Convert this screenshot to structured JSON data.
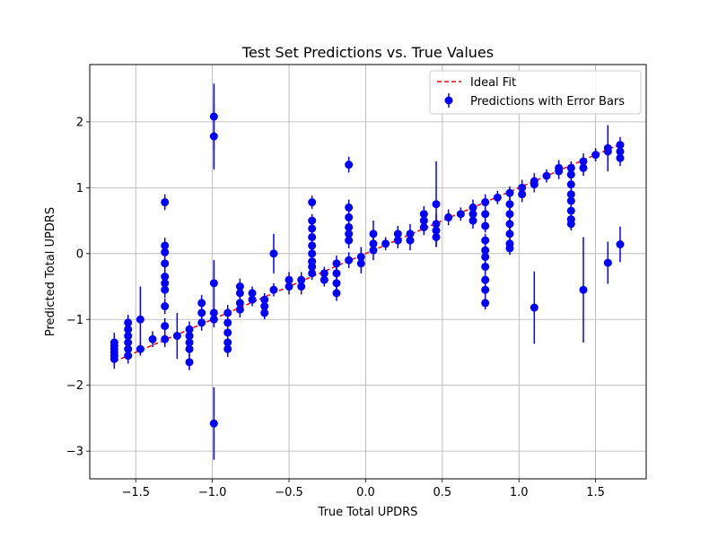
{
  "chart_data": {
    "type": "scatter",
    "title": "Test Set Predictions vs. True Values",
    "xlabel": "True Total UPDRS",
    "ylabel": "Predicted Total UPDRS",
    "xlim": [
      -1.8,
      1.83
    ],
    "ylim": [
      -3.42,
      2.87
    ],
    "x_ticks": [
      -1.5,
      -1.0,
      -0.5,
      0.0,
      0.5,
      1.0,
      1.5
    ],
    "x_tick_labels": [
      "−1.5",
      "−1.0",
      "−0.5",
      "0.0",
      "0.5",
      "1.0",
      "1.5"
    ],
    "y_ticks": [
      -3,
      -2,
      -1,
      0,
      1,
      2
    ],
    "y_tick_labels": [
      "−3",
      "−2",
      "−1",
      "0",
      "1",
      "2"
    ],
    "grid": true,
    "legend_position": "top-right",
    "legend": [
      {
        "label": "Ideal Fit",
        "style": "dashed-line",
        "color": "#ff0000"
      },
      {
        "label": "Predictions with Error Bars",
        "style": "marker-errorbar",
        "color": "#0000ff"
      }
    ],
    "ideal_fit": {
      "x": [
        -1.64,
        1.65
      ],
      "y": [
        -1.64,
        1.65
      ],
      "color": "#ff0000"
    },
    "marker_color": "#0000ff",
    "points": [
      {
        "x": -1.64,
        "y": -1.55,
        "err": 0.15
      },
      {
        "x": -1.64,
        "y": -1.5,
        "err": 0.15
      },
      {
        "x": -1.64,
        "y": -1.45,
        "err": 0.15
      },
      {
        "x": -1.64,
        "y": -1.4,
        "err": 0.15
      },
      {
        "x": -1.64,
        "y": -1.35,
        "err": 0.15
      },
      {
        "x": -1.64,
        "y": -1.6,
        "err": 0.15
      },
      {
        "x": -1.55,
        "y": -1.55,
        "err": 0.12
      },
      {
        "x": -1.55,
        "y": -1.45,
        "err": 0.12
      },
      {
        "x": -1.55,
        "y": -1.35,
        "err": 0.12
      },
      {
        "x": -1.55,
        "y": -1.25,
        "err": 0.12
      },
      {
        "x": -1.55,
        "y": -1.15,
        "err": 0.12
      },
      {
        "x": -1.55,
        "y": -1.05,
        "err": 0.12
      },
      {
        "x": -1.47,
        "y": -1.0,
        "err": 0.5
      },
      {
        "x": -1.47,
        "y": -1.45,
        "err": 0.1
      },
      {
        "x": -1.39,
        "y": -1.3,
        "err": 0.12
      },
      {
        "x": -1.31,
        "y": 0.78,
        "err": 0.12
      },
      {
        "x": -1.31,
        "y": 0.12,
        "err": 0.12
      },
      {
        "x": -1.31,
        "y": 0.02,
        "err": 0.12
      },
      {
        "x": -1.31,
        "y": -0.15,
        "err": 0.12
      },
      {
        "x": -1.31,
        "y": -0.35,
        "err": 0.12
      },
      {
        "x": -1.31,
        "y": -0.45,
        "err": 0.12
      },
      {
        "x": -1.31,
        "y": -0.55,
        "err": 0.12
      },
      {
        "x": -1.31,
        "y": -0.8,
        "err": 0.12
      },
      {
        "x": -1.31,
        "y": -1.1,
        "err": 0.12
      },
      {
        "x": -1.31,
        "y": -1.3,
        "err": 0.12
      },
      {
        "x": -1.23,
        "y": -1.25,
        "err": 0.35
      },
      {
        "x": -1.15,
        "y": -1.15,
        "err": 0.12
      },
      {
        "x": -1.15,
        "y": -1.25,
        "err": 0.12
      },
      {
        "x": -1.15,
        "y": -1.35,
        "err": 0.12
      },
      {
        "x": -1.15,
        "y": -1.45,
        "err": 0.12
      },
      {
        "x": -1.15,
        "y": -1.65,
        "err": 0.12
      },
      {
        "x": -1.07,
        "y": -0.75,
        "err": 0.12
      },
      {
        "x": -1.07,
        "y": -0.9,
        "err": 0.12
      },
      {
        "x": -1.07,
        "y": -1.05,
        "err": 0.12
      },
      {
        "x": -0.99,
        "y": 2.08,
        "err": 0.5
      },
      {
        "x": -0.99,
        "y": 1.78,
        "err": 0.5
      },
      {
        "x": -0.99,
        "y": -0.45,
        "err": 0.35
      },
      {
        "x": -0.99,
        "y": -0.9,
        "err": 0.12
      },
      {
        "x": -0.99,
        "y": -1.0,
        "err": 0.12
      },
      {
        "x": -0.99,
        "y": -2.58,
        "err": 0.55
      },
      {
        "x": -0.9,
        "y": -0.9,
        "err": 0.12
      },
      {
        "x": -0.9,
        "y": -1.05,
        "err": 0.12
      },
      {
        "x": -0.9,
        "y": -1.2,
        "err": 0.12
      },
      {
        "x": -0.9,
        "y": -1.35,
        "err": 0.12
      },
      {
        "x": -0.9,
        "y": -1.45,
        "err": 0.12
      },
      {
        "x": -0.82,
        "y": -0.5,
        "err": 0.12
      },
      {
        "x": -0.82,
        "y": -0.6,
        "err": 0.12
      },
      {
        "x": -0.82,
        "y": -0.75,
        "err": 0.12
      },
      {
        "x": -0.82,
        "y": -0.85,
        "err": 0.12
      },
      {
        "x": -0.74,
        "y": -0.6,
        "err": 0.1
      },
      {
        "x": -0.74,
        "y": -0.7,
        "err": 0.1
      },
      {
        "x": -0.66,
        "y": -0.7,
        "err": 0.1
      },
      {
        "x": -0.66,
        "y": -0.8,
        "err": 0.1
      },
      {
        "x": -0.66,
        "y": -0.9,
        "err": 0.1
      },
      {
        "x": -0.6,
        "y": 0.0,
        "err": 0.3
      },
      {
        "x": -0.6,
        "y": -0.55,
        "err": 0.1
      },
      {
        "x": -0.5,
        "y": -0.4,
        "err": 0.12
      },
      {
        "x": -0.5,
        "y": -0.5,
        "err": 0.12
      },
      {
        "x": -0.42,
        "y": -0.4,
        "err": 0.12
      },
      {
        "x": -0.42,
        "y": -0.5,
        "err": 0.12
      },
      {
        "x": -0.35,
        "y": 0.78,
        "err": 0.1
      },
      {
        "x": -0.35,
        "y": 0.5,
        "err": 0.1
      },
      {
        "x": -0.35,
        "y": 0.38,
        "err": 0.1
      },
      {
        "x": -0.35,
        "y": 0.25,
        "err": 0.1
      },
      {
        "x": -0.35,
        "y": 0.12,
        "err": 0.1
      },
      {
        "x": -0.35,
        "y": 0.0,
        "err": 0.1
      },
      {
        "x": -0.35,
        "y": -0.12,
        "err": 0.1
      },
      {
        "x": -0.35,
        "y": -0.2,
        "err": 0.1
      },
      {
        "x": -0.35,
        "y": -0.3,
        "err": 0.1
      },
      {
        "x": -0.27,
        "y": -0.3,
        "err": 0.1
      },
      {
        "x": -0.27,
        "y": -0.4,
        "err": 0.1
      },
      {
        "x": -0.19,
        "y": -0.15,
        "err": 0.12
      },
      {
        "x": -0.19,
        "y": -0.3,
        "err": 0.12
      },
      {
        "x": -0.19,
        "y": -0.45,
        "err": 0.12
      },
      {
        "x": -0.19,
        "y": -0.6,
        "err": 0.12
      },
      {
        "x": -0.11,
        "y": 1.35,
        "err": 0.12
      },
      {
        "x": -0.11,
        "y": 0.7,
        "err": 0.12
      },
      {
        "x": -0.11,
        "y": 0.55,
        "err": 0.12
      },
      {
        "x": -0.11,
        "y": 0.4,
        "err": 0.12
      },
      {
        "x": -0.11,
        "y": 0.3,
        "err": 0.12
      },
      {
        "x": -0.11,
        "y": 0.2,
        "err": 0.12
      },
      {
        "x": -0.11,
        "y": -0.1,
        "err": 0.12
      },
      {
        "x": -0.03,
        "y": -0.05,
        "err": 0.15
      },
      {
        "x": -0.03,
        "y": -0.15,
        "err": 0.15
      },
      {
        "x": 0.05,
        "y": 0.3,
        "err": 0.2
      },
      {
        "x": 0.05,
        "y": 0.15,
        "err": 0.15
      },
      {
        "x": 0.05,
        "y": 0.05,
        "err": 0.15
      },
      {
        "x": 0.13,
        "y": 0.15,
        "err": 0.1
      },
      {
        "x": 0.21,
        "y": 0.3,
        "err": 0.12
      },
      {
        "x": 0.21,
        "y": 0.2,
        "err": 0.12
      },
      {
        "x": 0.29,
        "y": 0.3,
        "err": 0.15
      },
      {
        "x": 0.29,
        "y": 0.2,
        "err": 0.15
      },
      {
        "x": 0.38,
        "y": 0.6,
        "err": 0.12
      },
      {
        "x": 0.38,
        "y": 0.5,
        "err": 0.12
      },
      {
        "x": 0.38,
        "y": 0.4,
        "err": 0.12
      },
      {
        "x": 0.46,
        "y": 0.75,
        "err": 0.65
      },
      {
        "x": 0.46,
        "y": 0.45,
        "err": 0.15
      },
      {
        "x": 0.46,
        "y": 0.35,
        "err": 0.15
      },
      {
        "x": 0.46,
        "y": 0.25,
        "err": 0.15
      },
      {
        "x": 0.54,
        "y": 0.55,
        "err": 0.12
      },
      {
        "x": 0.62,
        "y": 0.6,
        "err": 0.1
      },
      {
        "x": 0.7,
        "y": 0.7,
        "err": 0.12
      },
      {
        "x": 0.7,
        "y": 0.6,
        "err": 0.12
      },
      {
        "x": 0.7,
        "y": 0.5,
        "err": 0.12
      },
      {
        "x": 0.78,
        "y": 0.78,
        "err": 0.12
      },
      {
        "x": 0.78,
        "y": 0.6,
        "err": 0.1
      },
      {
        "x": 0.78,
        "y": 0.42,
        "err": 0.1
      },
      {
        "x": 0.78,
        "y": 0.2,
        "err": 0.1
      },
      {
        "x": 0.78,
        "y": 0.05,
        "err": 0.1
      },
      {
        "x": 0.78,
        "y": -0.05,
        "err": 0.1
      },
      {
        "x": 0.78,
        "y": -0.2,
        "err": 0.1
      },
      {
        "x": 0.78,
        "y": -0.4,
        "err": 0.1
      },
      {
        "x": 0.78,
        "y": -0.55,
        "err": 0.1
      },
      {
        "x": 0.78,
        "y": -0.75,
        "err": 0.1
      },
      {
        "x": 0.86,
        "y": 0.85,
        "err": 0.1
      },
      {
        "x": 0.94,
        "y": 0.92,
        "err": 0.1
      },
      {
        "x": 0.94,
        "y": 0.75,
        "err": 0.1
      },
      {
        "x": 0.94,
        "y": 0.6,
        "err": 0.1
      },
      {
        "x": 0.94,
        "y": 0.45,
        "err": 0.1
      },
      {
        "x": 0.94,
        "y": 0.3,
        "err": 0.1
      },
      {
        "x": 0.94,
        "y": 0.15,
        "err": 0.1
      },
      {
        "x": 0.94,
        "y": 0.08,
        "err": 0.1
      },
      {
        "x": 1.02,
        "y": 1.0,
        "err": 0.12
      },
      {
        "x": 1.02,
        "y": 0.9,
        "err": 0.12
      },
      {
        "x": 1.1,
        "y": 1.1,
        "err": 0.12
      },
      {
        "x": 1.1,
        "y": 1.05,
        "err": 0.12
      },
      {
        "x": 1.1,
        "y": -0.82,
        "err": 0.55
      },
      {
        "x": 1.18,
        "y": 1.18,
        "err": 0.1
      },
      {
        "x": 1.26,
        "y": 1.25,
        "err": 0.12
      },
      {
        "x": 1.26,
        "y": 1.3,
        "err": 0.12
      },
      {
        "x": 1.34,
        "y": 1.3,
        "err": 0.1
      },
      {
        "x": 1.34,
        "y": 1.2,
        "err": 0.1
      },
      {
        "x": 1.34,
        "y": 1.05,
        "err": 0.1
      },
      {
        "x": 1.34,
        "y": 0.9,
        "err": 0.1
      },
      {
        "x": 1.34,
        "y": 0.8,
        "err": 0.1
      },
      {
        "x": 1.34,
        "y": 0.65,
        "err": 0.1
      },
      {
        "x": 1.34,
        "y": 0.52,
        "err": 0.1
      },
      {
        "x": 1.34,
        "y": 0.45,
        "err": 0.1
      },
      {
        "x": 1.42,
        "y": 1.4,
        "err": 0.12
      },
      {
        "x": 1.42,
        "y": 1.3,
        "err": 0.12
      },
      {
        "x": 1.42,
        "y": -0.55,
        "err": 0.8
      },
      {
        "x": 1.5,
        "y": 1.5,
        "err": 0.1
      },
      {
        "x": 1.58,
        "y": 1.6,
        "err": 0.35
      },
      {
        "x": 1.58,
        "y": 1.55,
        "err": 0.15
      },
      {
        "x": 1.58,
        "y": -0.14,
        "err": 0.32
      },
      {
        "x": 1.66,
        "y": 1.65,
        "err": 0.12
      },
      {
        "x": 1.66,
        "y": 1.55,
        "err": 0.12
      },
      {
        "x": 1.66,
        "y": 1.45,
        "err": 0.12
      },
      {
        "x": 1.66,
        "y": 0.14,
        "err": 0.27
      }
    ]
  }
}
